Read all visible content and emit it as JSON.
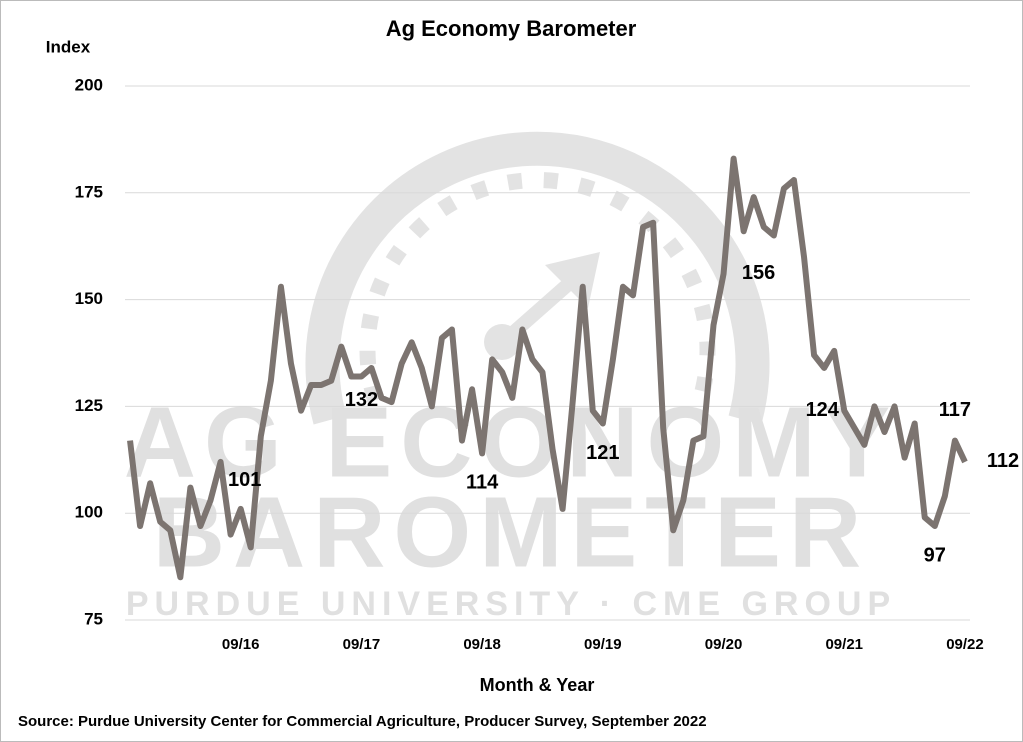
{
  "chart_data": {
    "type": "line",
    "title": "Ag Economy Barometer",
    "y_label": "Index",
    "x_label": "Month & Year",
    "source": "Source: Purdue University Center for Commercial Agriculture, Producer Survey, September 2022",
    "watermark": [
      "AG ECONOMY",
      "BAROMETER",
      "PURDUE UNIVERSITY  ·  CME GROUP"
    ],
    "categories": [
      null,
      null,
      null,
      null,
      null,
      null,
      null,
      null,
      null,
      null,
      null,
      "09/16",
      null,
      null,
      null,
      null,
      null,
      null,
      null,
      null,
      null,
      null,
      null,
      "09/17",
      null,
      null,
      null,
      null,
      null,
      null,
      null,
      null,
      null,
      null,
      null,
      "09/18",
      null,
      null,
      null,
      null,
      null,
      null,
      null,
      null,
      null,
      null,
      null,
      "09/19",
      null,
      null,
      null,
      null,
      null,
      null,
      null,
      null,
      null,
      null,
      null,
      "09/20",
      null,
      null,
      null,
      null,
      null,
      null,
      null,
      null,
      null,
      null,
      null,
      "09/21",
      null,
      null,
      null,
      null,
      null,
      null,
      null,
      null,
      null,
      null,
      null,
      "09/22"
    ],
    "values": [
      117,
      97,
      107,
      98,
      96,
      85,
      106,
      97,
      103,
      112,
      95,
      101,
      92,
      118,
      131,
      153,
      135,
      124,
      130,
      130,
      131,
      139,
      132,
      132,
      134,
      127,
      126,
      135,
      140,
      134,
      125,
      141,
      143,
      117,
      129,
      114,
      136,
      133,
      127,
      143,
      136,
      133,
      115,
      101,
      126,
      153,
      124,
      121,
      136,
      153,
      151,
      167,
      168,
      120,
      96,
      103,
      117,
      118,
      144,
      156,
      183,
      166,
      174,
      167,
      165,
      176,
      178,
      160,
      137,
      134,
      138,
      124,
      120,
      116,
      125,
      119,
      125,
      113,
      121,
      99,
      97,
      104,
      117,
      112
    ],
    "labeled_points": [
      11,
      23,
      35,
      47,
      59,
      71,
      80,
      82,
      83
    ],
    "color": "#7c7470",
    "ylim": [
      75,
      200
    ],
    "yticks": [
      75,
      100,
      125,
      150,
      175,
      200
    ],
    "grid": true
  }
}
